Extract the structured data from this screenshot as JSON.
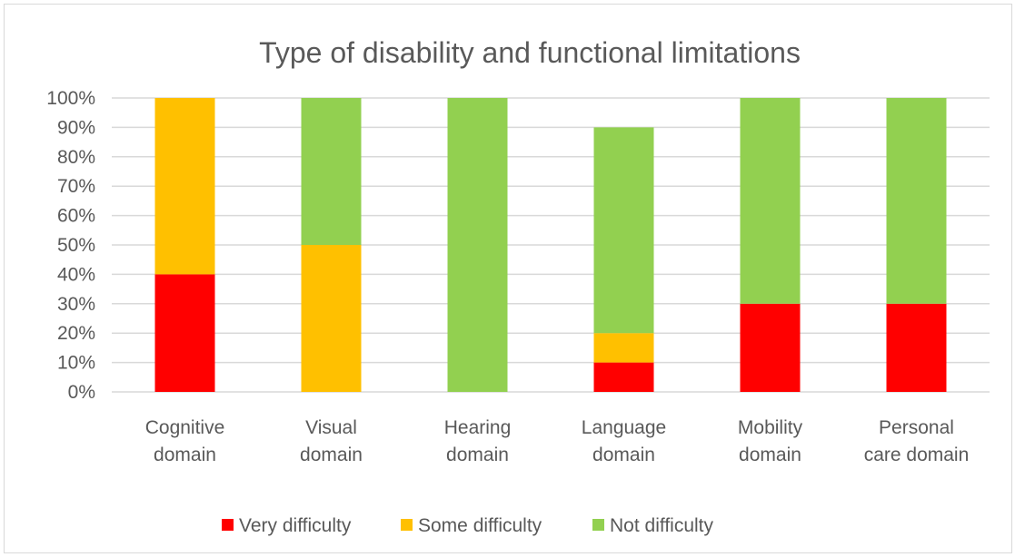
{
  "chart_data": {
    "type": "bar",
    "stacked": true,
    "title": "Type of disability and functional limitations",
    "xlabel": "",
    "ylabel": "",
    "ylim": [
      0,
      1
    ],
    "yticks": [
      "0%",
      "10%",
      "20%",
      "30%",
      "40%",
      "50%",
      "60%",
      "70%",
      "80%",
      "90%",
      "100%"
    ],
    "grid": true,
    "legend_position": "bottom",
    "categories": [
      [
        "Cognitive",
        "domain"
      ],
      [
        "Visual",
        "domain"
      ],
      [
        "Hearing",
        "domain"
      ],
      [
        "Language",
        "domain"
      ],
      [
        "Mobility",
        "domain"
      ],
      [
        "Personal",
        "care domain"
      ]
    ],
    "series": [
      {
        "name": "Very difficulty",
        "color": "#ff0000",
        "values": [
          0.4,
          0.0,
          0.0,
          0.1,
          0.3,
          0.3
        ]
      },
      {
        "name": "Some difficulty",
        "color": "#ffc000",
        "values": [
          0.6,
          0.5,
          0.0,
          0.1,
          0.0,
          0.0
        ]
      },
      {
        "name": "Not difficulty",
        "color": "#92d050",
        "values": [
          0.0,
          0.5,
          1.0,
          0.7,
          0.7,
          0.7
        ]
      }
    ]
  }
}
